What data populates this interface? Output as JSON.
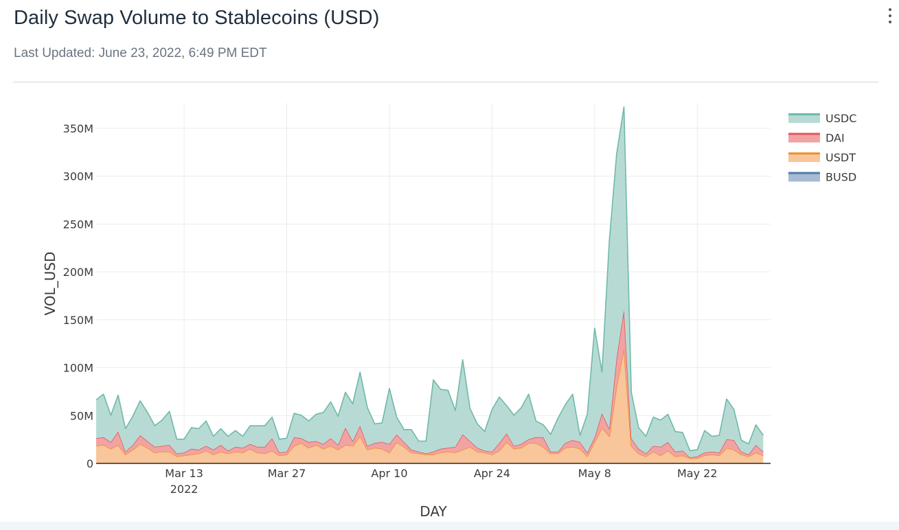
{
  "header": {
    "title": "Daily Swap Volume to Stablecoins (USD)",
    "subtitle": "Last Updated: June 23, 2022, 6:49 PM EDT",
    "menu_icon": "kebab-menu-icon"
  },
  "chart_data": {
    "type": "area",
    "stacked": true,
    "xlabel": "DAY",
    "ylabel": "VOL_USD",
    "ylim": [
      0,
      380000000
    ],
    "yticks": [
      {
        "value": 0,
        "label": "0"
      },
      {
        "value": 50000000,
        "label": "50M"
      },
      {
        "value": 100000000,
        "label": "100M"
      },
      {
        "value": 150000000,
        "label": "150M"
      },
      {
        "value": 200000000,
        "label": "200M"
      },
      {
        "value": 250000000,
        "label": "250M"
      },
      {
        "value": 300000000,
        "label": "300M"
      },
      {
        "value": 350000000,
        "label": "350M"
      }
    ],
    "xticks": [
      {
        "date": "2022-03-13",
        "label": "Mar 13",
        "sublabel": "2022"
      },
      {
        "date": "2022-03-27",
        "label": "Mar 27",
        "sublabel": ""
      },
      {
        "date": "2022-04-10",
        "label": "Apr 10",
        "sublabel": ""
      },
      {
        "date": "2022-04-24",
        "label": "Apr 24",
        "sublabel": ""
      },
      {
        "date": "2022-05-08",
        "label": "May 8",
        "sublabel": ""
      },
      {
        "date": "2022-05-22",
        "label": "May 22",
        "sublabel": ""
      }
    ],
    "x_start": "2022-03-01",
    "x_end": "2022-06-01",
    "grid": true,
    "legend_position": "right-top",
    "colors": {
      "USDC": "#6fb8a9",
      "DAI": "#e15759",
      "USDT": "#f28e2b",
      "BUSD": "#4e79a7"
    },
    "fills": {
      "USDC": "#b7dbd4",
      "DAI": "#f1a3a4",
      "USDT": "#f8c69a",
      "BUSD": "#a6bcd3"
    },
    "legend_order": [
      "USDC",
      "DAI",
      "USDT",
      "BUSD"
    ],
    "stack_order": [
      "BUSD",
      "USDT",
      "DAI",
      "USDC"
    ],
    "series": [
      {
        "name": "BUSD",
        "values": [
          0.3,
          0.3,
          0.3,
          0.3,
          0.3,
          0.3,
          0.3,
          0.3,
          0.3,
          0.3,
          0.3,
          0.3,
          0.3,
          0.3,
          0.3,
          0.3,
          0.3,
          0.3,
          0.3,
          0.3,
          0.3,
          0.3,
          0.3,
          0.3,
          0.3,
          0.3,
          0.3,
          0.3,
          0.3,
          0.3,
          0.3,
          0.3,
          0.3,
          0.3,
          0.3,
          0.3,
          0.3,
          0.3,
          0.3,
          0.3,
          0.3,
          0.3,
          0.3,
          0.3,
          0.3,
          0.3,
          0.3,
          0.3,
          0.3,
          0.3,
          0.3,
          0.3,
          0.3,
          0.3,
          0.3,
          0.3,
          0.3,
          0.3,
          0.3,
          0.3,
          0.3,
          0.3,
          0.3,
          0.3,
          0.3,
          0.3,
          0.3,
          0.3,
          0.3,
          0.3,
          0.3,
          0.3,
          0.3,
          0.3,
          0.3,
          0.3,
          0.3,
          0.3,
          0.3,
          0.3,
          0.3,
          0.3,
          0.3,
          0.3,
          0.3,
          0.3,
          0.3,
          0.3,
          0.3,
          0.3,
          0.3,
          0.3
        ]
      },
      {
        "name": "USDT",
        "values": [
          18,
          19,
          15,
          19,
          9,
          14,
          20,
          16,
          11,
          12,
          12,
          7,
          8,
          9,
          10,
          13,
          9,
          12,
          10,
          12,
          11,
          15,
          11,
          10,
          13,
          8,
          9,
          18,
          21,
          16,
          19,
          15,
          18,
          14,
          19,
          18,
          28,
          14,
          16,
          15,
          11,
          22,
          17,
          11,
          10,
          9,
          9,
          11,
          12,
          11,
          14,
          17,
          12,
          11,
          9,
          13,
          22,
          15,
          16,
          21,
          21,
          17,
          10,
          10,
          16,
          17,
          15,
          7,
          22,
          37,
          28,
          80,
          120,
          18,
          10,
          7,
          12,
          8,
          13,
          7,
          8,
          5,
          5,
          8,
          9,
          8,
          16,
          14,
          9,
          7,
          11,
          8
        ]
      },
      {
        "name": "DAI",
        "values": [
          8,
          8,
          7,
          14,
          3,
          5,
          9,
          7,
          6,
          6,
          7,
          3,
          3,
          6,
          4,
          5,
          5,
          7,
          3,
          5,
          5,
          5,
          6,
          7,
          13,
          3,
          3,
          9,
          5,
          6,
          4,
          5,
          8,
          5,
          18,
          5,
          11,
          4,
          5,
          7,
          9,
          8,
          5,
          3,
          2,
          1,
          3,
          4,
          4,
          6,
          16,
          6,
          4,
          2,
          3,
          8,
          9,
          3,
          4,
          4,
          6,
          10,
          2,
          2,
          5,
          7,
          7,
          4,
          5,
          15,
          8,
          30,
          40,
          8,
          5,
          3,
          6,
          9,
          9,
          5,
          5,
          1,
          2,
          3,
          3,
          3,
          9,
          10,
          3,
          2,
          8,
          4
        ]
      },
      {
        "name": "USDC",
        "values": [
          40,
          45,
          28,
          38,
          24,
          30,
          36,
          30,
          22,
          27,
          35,
          15,
          14,
          22,
          22,
          26,
          14,
          17,
          15,
          17,
          12,
          19,
          22,
          22,
          22,
          14,
          14,
          25,
          24,
          22,
          28,
          33,
          38,
          30,
          37,
          39,
          56,
          40,
          20,
          20,
          58,
          18,
          13,
          21,
          11,
          13,
          75,
          62,
          60,
          38,
          78,
          34,
          25,
          20,
          44,
          48,
          29,
          32,
          38,
          47,
          17,
          13,
          18,
          35,
          40,
          48,
          7,
          40,
          114,
          43,
          196,
          213,
          212,
          48,
          22,
          18,
          30,
          28,
          29,
          21,
          19,
          7,
          7,
          23,
          16,
          18,
          42,
          32,
          12,
          11,
          21,
          17
        ]
      }
    ]
  }
}
